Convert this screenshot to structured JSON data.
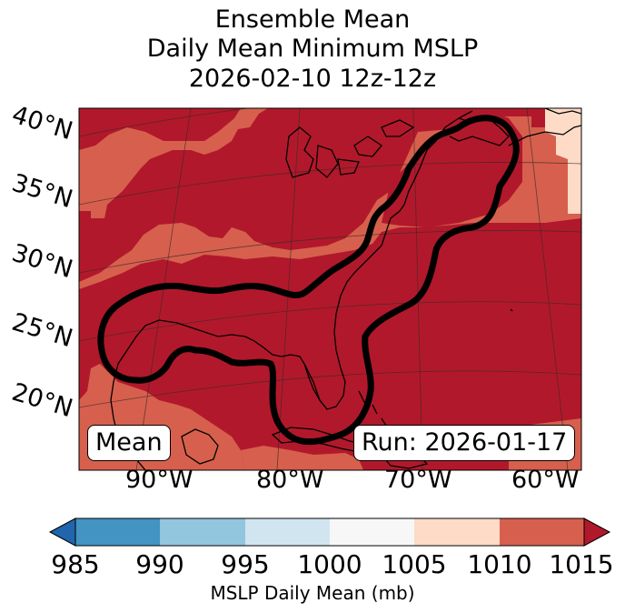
{
  "title": {
    "line1": "Ensemble Mean",
    "line2": "Daily Mean Minimum MSLP",
    "line3": "2026-02-10 12z-12z"
  },
  "map": {
    "lat_labels": [
      "40°N",
      "35°N",
      "30°N",
      "25°N",
      "20°N"
    ],
    "lon_labels": [
      "90°W",
      "80°W",
      "70°W",
      "60°W"
    ],
    "mean_badge": "Mean",
    "run_badge": "Run: 2026-01-17",
    "colors": {
      "below_985": "#2166ac",
      "985_990": "#4393c3",
      "990_995": "#92c5de",
      "995_1000": "#d1e5f0",
      "1000_1005": "#f7f7f7",
      "1005_1010": "#fddbc7",
      "1010_1015": "#d6604d",
      "above_1015": "#b2182b",
      "contour": "#000000",
      "coastline": "#000000"
    }
  },
  "colorbar": {
    "ticks": [
      "985",
      "990",
      "995",
      "1000",
      "1005",
      "1010",
      "1015"
    ],
    "label": "MSLP Daily Mean (mb)"
  }
}
